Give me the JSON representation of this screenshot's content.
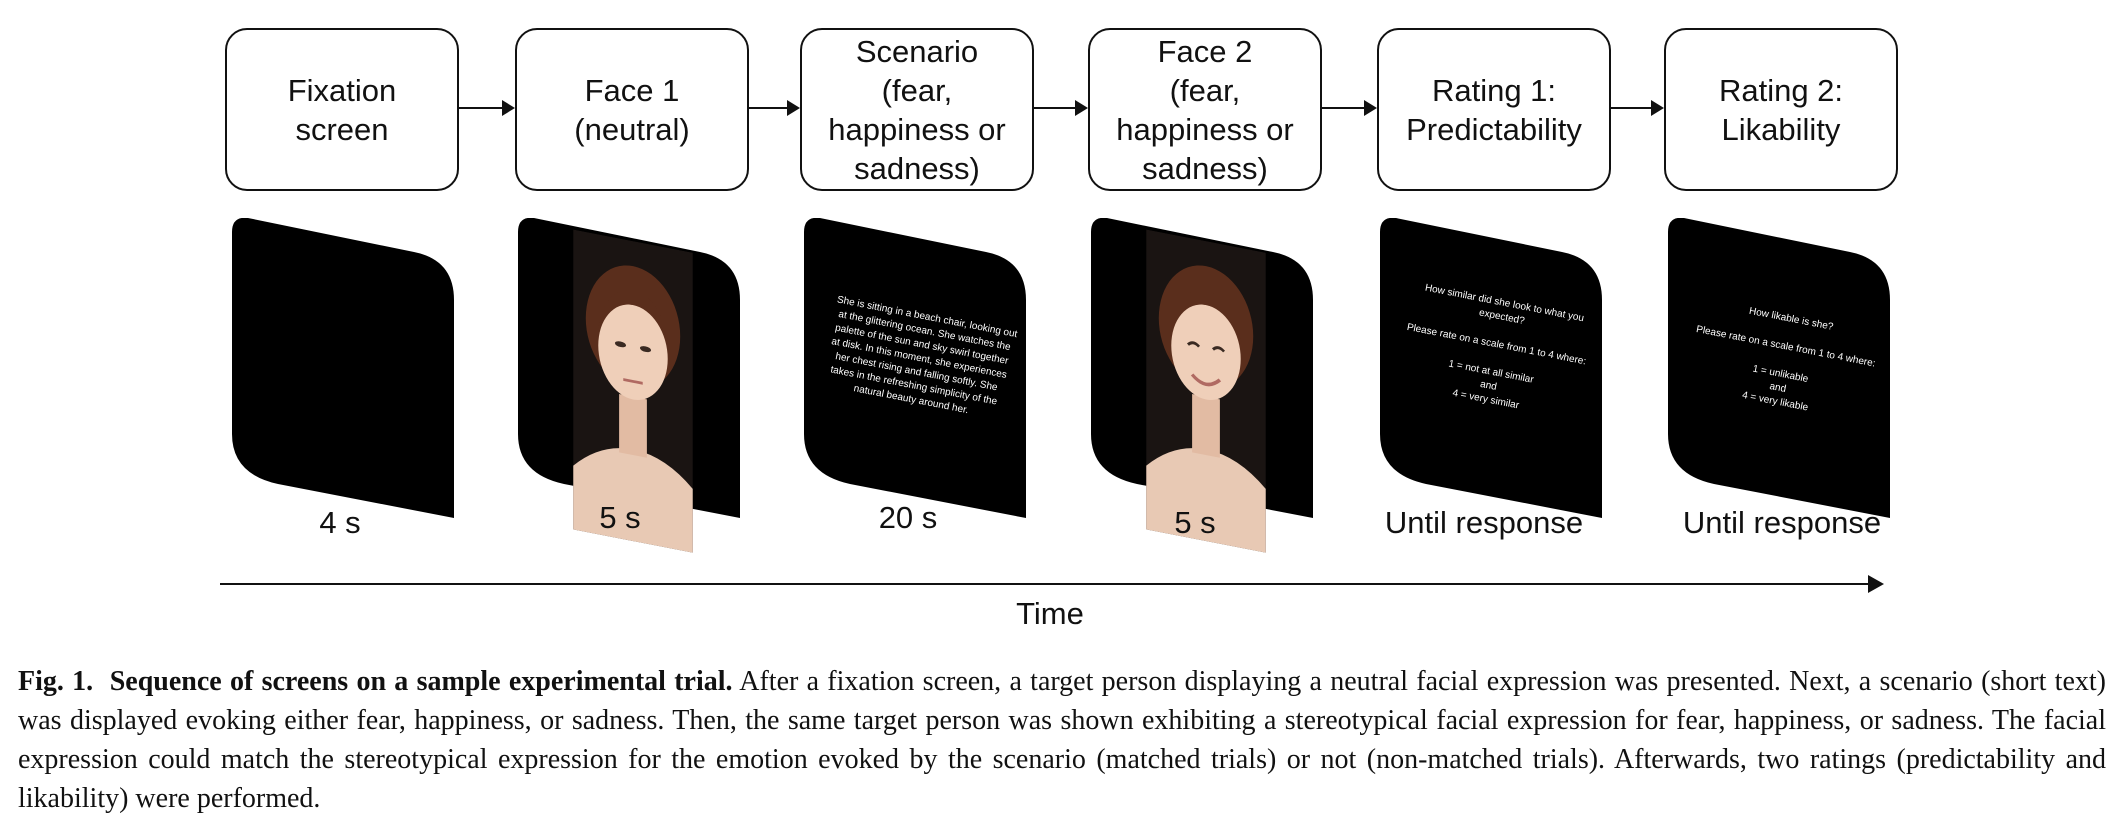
{
  "stages": [
    {
      "box": "Fixation\nscreen",
      "duration": "4 s",
      "screen_text": ""
    },
    {
      "box": "Face 1\n(neutral)",
      "duration": "5 s",
      "screen_text": ""
    },
    {
      "box": "Scenario\n(fear,\nhappiness or\nsadness)",
      "duration": "20 s",
      "screen_text": "She is sitting in a beach chair, looking out at the glittering ocean. She watches the palette of the sun and sky swirl together at disk. In this moment, she experiences her chest rising and falling softly. She takes in the refreshing simplicity of the natural beauty around her."
    },
    {
      "box": "Face 2\n(fear,\nhappiness or\nsadness)",
      "duration": "5 s",
      "screen_text": ""
    },
    {
      "box": "Rating 1:\nPredictability",
      "duration": "Until response",
      "screen_text": "How similar did she look to what you expected?\n\nPlease rate on a scale from 1 to 4 where:\n\n1 = not at all similar\nand\n4 = very similar"
    },
    {
      "box": "Rating 2:\nLikability",
      "duration": "Until response",
      "screen_text": "How likable is she?\n\nPlease rate on a scale from 1 to 4 where:\n\n1 = unlikable\nand\n4 = very likable"
    }
  ],
  "time_label": "Time",
  "caption": {
    "label": "Fig. 1.",
    "title": "Sequence of screens on a sample experimental trial.",
    "body": "After a fixation screen, a target person displaying a neutral facial expression was presented. Next, a scenario (short text) was displayed evoking either fear, happiness, or sadness. Then, the same target person was shown exhibiting a stereotypical facial expression for fear, happiness, or sadness. The facial expression could match the stereotypical expression for the emotion evoked by the scenario (matched trials) or not (non-matched trials). Afterwards, two ratings (predictability and likability) were performed."
  }
}
